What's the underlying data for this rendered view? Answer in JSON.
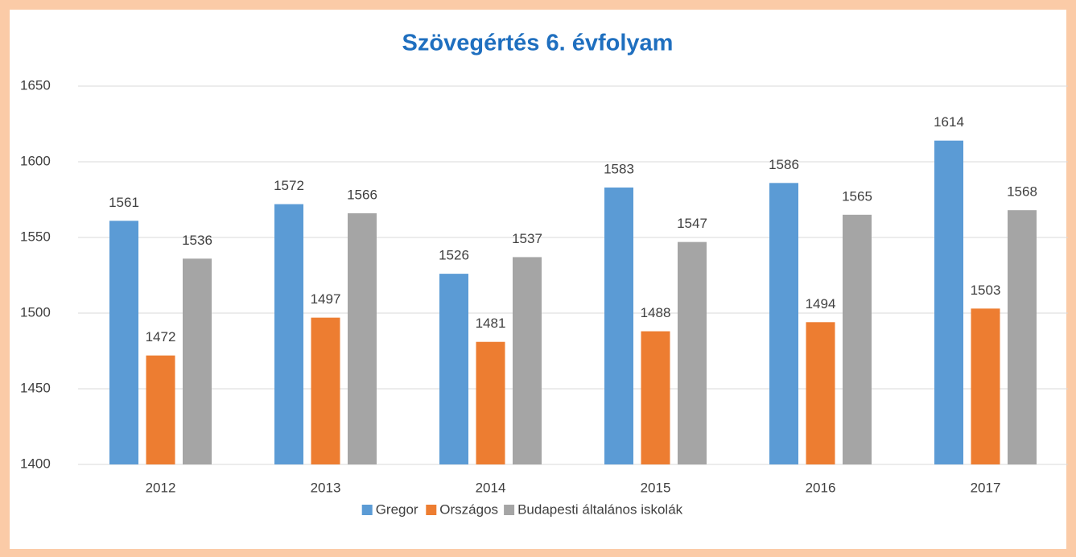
{
  "chart_data": {
    "type": "bar",
    "title": "Szövegértés 6. évfolyam",
    "categories": [
      "2012",
      "2013",
      "2014",
      "2015",
      "2016",
      "2017"
    ],
    "series": [
      {
        "name": "Gregor",
        "color": "#5b9bd5",
        "values": [
          1561,
          1572,
          1526,
          1583,
          1586,
          1614
        ]
      },
      {
        "name": "Országos",
        "color": "#ed7d31",
        "values": [
          1472,
          1497,
          1481,
          1488,
          1494,
          1503
        ]
      },
      {
        "name": "Budapesti általános iskolák",
        "color": "#a5a5a5",
        "values": [
          1536,
          1566,
          1537,
          1547,
          1565,
          1568
        ]
      }
    ],
    "ylim": [
      1400,
      1650
    ],
    "yticks": [
      1400,
      1450,
      1500,
      1550,
      1600,
      1650
    ],
    "grid": true,
    "legend": "bottom"
  }
}
